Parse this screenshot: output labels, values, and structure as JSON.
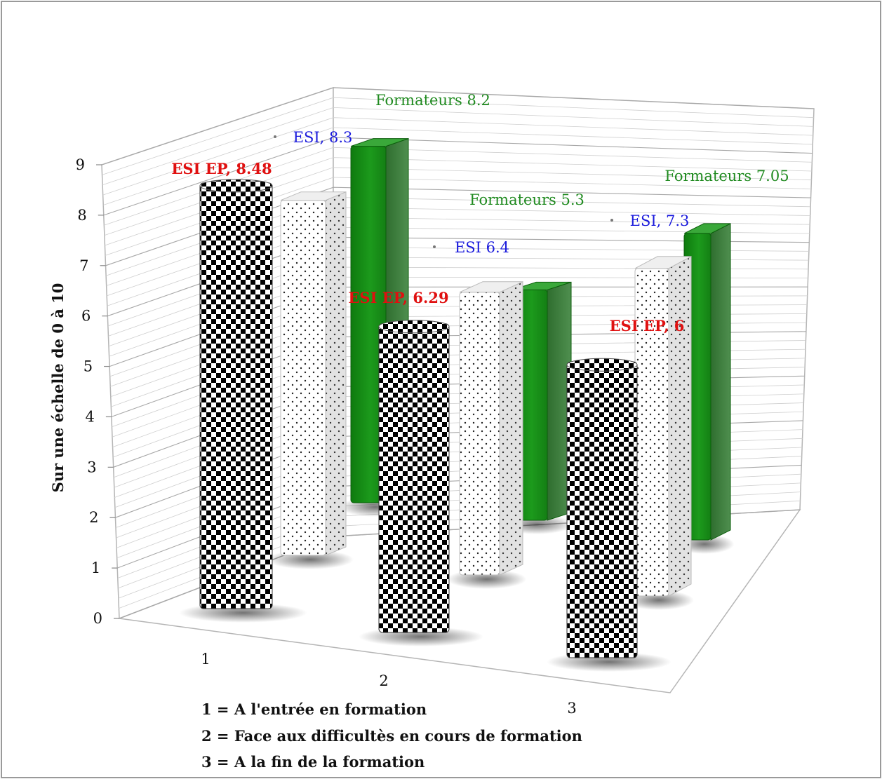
{
  "chart_data": {
    "type": "bar",
    "style": "3d-clustered-column",
    "categories": [
      "1",
      "2",
      "3"
    ],
    "ylabel": "Sur une échelle de 0 à 10",
    "ylim": [
      0,
      9
    ],
    "yticks": [
      "0",
      "1",
      "2",
      "3",
      "4",
      "5",
      "6",
      "7",
      "8",
      "9"
    ],
    "grid": true,
    "series": [
      {
        "key": "esi-ep",
        "values": [
          8.48,
          6.29,
          6
        ],
        "labels": [
          "ESI EP, 8.48",
          "ESI EP, 6.29",
          "ESI EP, 6"
        ],
        "label_color": "#e01010",
        "pattern": "checkerboard"
      },
      {
        "key": "esi",
        "values": [
          8.3,
          6.4,
          7.3
        ],
        "labels": [
          "ESI, 8.3",
          "ESI 6.4",
          "ESI, 7.3"
        ],
        "label_color": "#1a1adc",
        "pattern": "dots"
      },
      {
        "key": "formateurs",
        "values": [
          8.2,
          5.3,
          7.05
        ],
        "labels": [
          "Formateurs 8.2",
          "Formateurs 5.3",
          "Formateurs 7.05"
        ],
        "label_color": "#1f8a1f",
        "color": "#1f8f1f"
      }
    ],
    "notes": [
      "1 = A l'entrée en formation",
      "2 = Face aux difficultès en cours de formation",
      "3 = A la fin de la formation"
    ]
  }
}
